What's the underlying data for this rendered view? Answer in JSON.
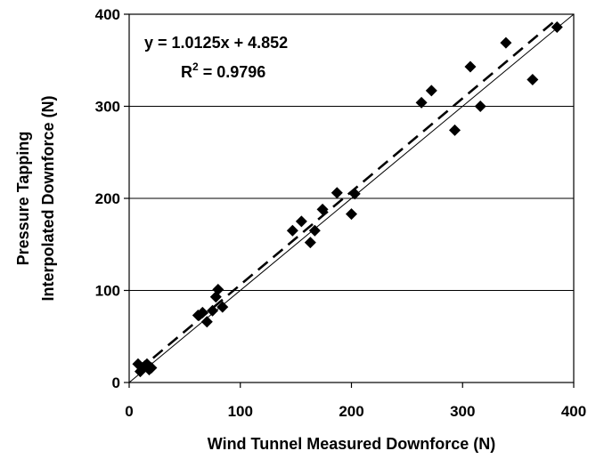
{
  "chart_data": {
    "type": "scatter",
    "title": "",
    "xlabel": "Wind Tunnel Measured Downforce (N)",
    "ylabel_line1": "Pressure Tapping",
    "ylabel_line2": "Interpolated Downforce (N)",
    "xlim": [
      0,
      400
    ],
    "ylim": [
      0,
      400
    ],
    "xticks": [
      "0",
      "100",
      "200",
      "300",
      "400"
    ],
    "yticks": [
      "0",
      "100",
      "200",
      "300",
      "400"
    ],
    "grid": "horizontal",
    "equation": "y = 1.0125x + 4.852",
    "r2_label": "R",
    "r2_sup": "2",
    "r2_value": " = 0.9796",
    "trendline": {
      "slope": 1.0125,
      "intercept": 4.852,
      "style": "dashed"
    },
    "reference_line": {
      "slope": 1,
      "intercept": 0,
      "style": "solid"
    },
    "points": [
      [
        8,
        20
      ],
      [
        10,
        12
      ],
      [
        12,
        16
      ],
      [
        14,
        18
      ],
      [
        16,
        20
      ],
      [
        18,
        14
      ],
      [
        20,
        16
      ],
      [
        62,
        73
      ],
      [
        66,
        76
      ],
      [
        70,
        66
      ],
      [
        75,
        78
      ],
      [
        78,
        93
      ],
      [
        80,
        101
      ],
      [
        84,
        82
      ],
      [
        147,
        165
      ],
      [
        155,
        175
      ],
      [
        163,
        152
      ],
      [
        167,
        165
      ],
      [
        174,
        188
      ],
      [
        187,
        206
      ],
      [
        200,
        183
      ],
      [
        203,
        205
      ],
      [
        263,
        304
      ],
      [
        272,
        317
      ],
      [
        293,
        274
      ],
      [
        307,
        343
      ],
      [
        316,
        300
      ],
      [
        339,
        369
      ],
      [
        363,
        329
      ],
      [
        385,
        386
      ]
    ]
  }
}
